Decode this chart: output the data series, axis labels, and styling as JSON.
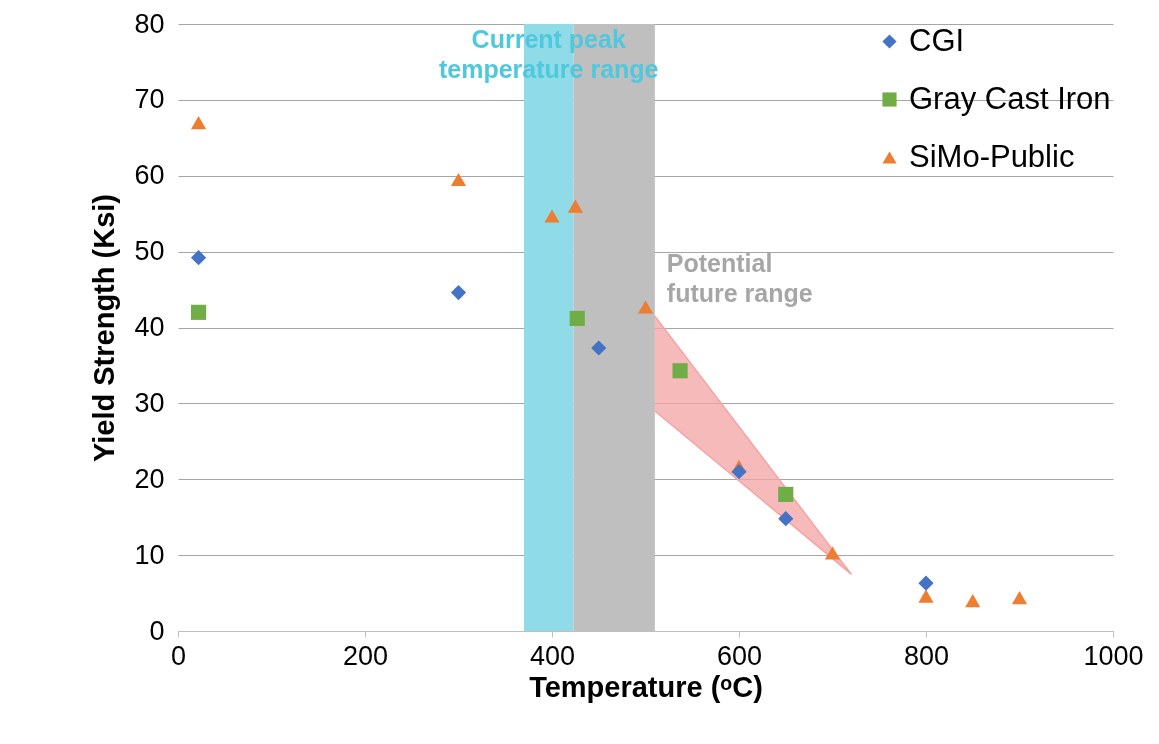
{
  "chart_data": {
    "type": "scatter",
    "xlabel": "Temperature (ᵒC)",
    "ylabel": "Yield Strength (Ksi)",
    "xlim": [
      0,
      1000
    ],
    "xticks": [
      0,
      200,
      400,
      600,
      800,
      {
        "value": 1000,
        "label": "1000"
      }
    ],
    "ylim": [
      0,
      80
    ],
    "yticks": [
      0,
      10,
      20,
      30,
      40,
      50,
      60,
      70,
      80
    ],
    "grid": "y",
    "legend": "top right",
    "series": [
      {
        "name": "CGI",
        "color": "#4472c4",
        "marker": "diamond",
        "x": [
          22,
          300,
          450,
          600,
          650,
          800
        ],
        "values": [
          49.2,
          44.6,
          37.3,
          21,
          14.8,
          6.3
        ]
      },
      {
        "name": "Gray Cast Iron",
        "color": "#70ad47",
        "marker": "square",
        "x": [
          22,
          427,
          537,
          650
        ],
        "values": [
          42,
          41.2,
          34.3,
          18
        ]
      },
      {
        "name": "SiMo-Public",
        "color": "#ed7d31",
        "marker": "triangle",
        "x": [
          22,
          300,
          400,
          425,
          500,
          600,
          700,
          800,
          850,
          900
        ],
        "values": [
          67,
          59.5,
          54.7,
          56,
          42.7,
          21.7,
          10.3,
          4.6,
          4,
          4.4
        ]
      },
      {
        "type": "area",
        "color": "#f4a3a3",
        "x": [
          510,
          720,
          510
        ],
        "values": [
          41.5,
          7.5,
          29
        ]
      }
    ],
    "bands": [
      {
        "axis": "x",
        "from": 370,
        "to": 423,
        "label": "Current peak temperature range",
        "color": "#8fdbe8"
      },
      {
        "axis": "x",
        "from": 423,
        "to": 510,
        "label": "Potential future range",
        "color": "#bfbfbf"
      }
    ]
  }
}
